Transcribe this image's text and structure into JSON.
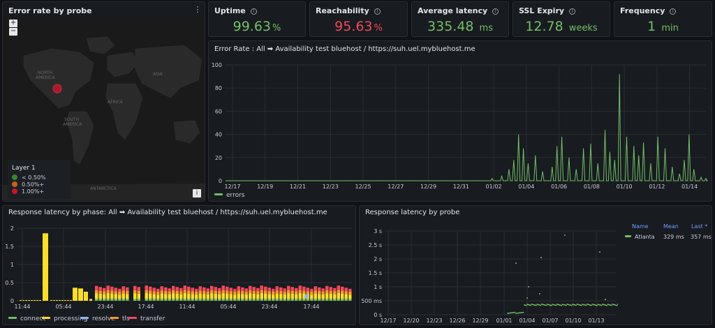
{
  "map_panel": {
    "title": "Error rate by probe",
    "zoom_in": "+",
    "zoom_out": "−",
    "labels": {
      "north_america_1": "NORTH",
      "north_america_2": "AMERICA",
      "south_america_1": "SOUTH",
      "south_america_2": "AMERICA",
      "asia": "ASIA",
      "africa": "AFRICA",
      "antarctica": "ANTARCTICA"
    },
    "legend": {
      "title": "Layer 1",
      "items": [
        {
          "label": "< 0.50%",
          "color": "#37872d"
        },
        {
          "label": "0.50%+",
          "color": "#c4631a"
        },
        {
          "label": "1.00%+",
          "color": "#c4162a"
        }
      ]
    },
    "info": "i"
  },
  "stats": [
    {
      "title": "Uptime",
      "value": "99.63",
      "unit": "%",
      "color": "#73bf69"
    },
    {
      "title": "Reachability",
      "value": "95.63",
      "unit": "%",
      "color": "#f2495c"
    },
    {
      "title": "Average latency",
      "value": "335.48",
      "unit": "ms",
      "color": "#73bf69"
    },
    {
      "title": "SSL Expiry",
      "value": "12.78",
      "unit": "weeks",
      "color": "#73bf69"
    },
    {
      "title": "Frequency",
      "value": "1",
      "unit": "min",
      "color": "#73bf69"
    }
  ],
  "error_rate": {
    "title": "Error Rate : All ➡ Availability test bluehost / https://suh.uel.mybluehost.me",
    "legend": "errors"
  },
  "latency_phase": {
    "title": "Response latency by phase: All ➡ Availability test bluehost / https://suh.uel.mybluehost.me",
    "legend": [
      {
        "label": "connect",
        "color": "#73bf69"
      },
      {
        "label": "processing",
        "color": "#fade2a"
      },
      {
        "label": "resolve",
        "color": "#8ab8ff"
      },
      {
        "label": "tls",
        "color": "#ff9830"
      },
      {
        "label": "transfer",
        "color": "#f2495c"
      }
    ]
  },
  "latency_probe": {
    "title": "Response latency by probe",
    "table": {
      "headers": [
        "Name",
        "Mean",
        "Last *"
      ],
      "rows": [
        {
          "name": "Atlanta",
          "mean": "329 ms",
          "last": "357 ms",
          "color": "#73bf69"
        }
      ]
    }
  },
  "chart_data": [
    {
      "type": "line",
      "title": "Error Rate : All ➡ Availability test bluehost / https://suh.uel.mybluehost.me",
      "x": [
        "12/17",
        "12/19",
        "12/21",
        "12/23",
        "12/25",
        "12/27",
        "12/29",
        "12/31",
        "01/02",
        "01/04",
        "01/06",
        "01/08",
        "01/10",
        "01/12",
        "01/14"
      ],
      "ylim": [
        0,
        100
      ],
      "yticks": [
        0,
        20,
        40,
        60,
        80,
        100
      ],
      "series": [
        {
          "name": "errors",
          "color": "#73bf69",
          "spikes": [
            [
              0.555,
              2
            ],
            [
              0.575,
              4
            ],
            [
              0.59,
              10
            ],
            [
              0.6,
              18
            ],
            [
              0.61,
              40
            ],
            [
              0.62,
              28
            ],
            [
              0.63,
              15
            ],
            [
              0.645,
              22
            ],
            [
              0.66,
              8
            ],
            [
              0.68,
              12
            ],
            [
              0.69,
              30
            ],
            [
              0.7,
              38
            ],
            [
              0.715,
              20
            ],
            [
              0.73,
              10
            ],
            [
              0.745,
              28
            ],
            [
              0.76,
              32
            ],
            [
              0.775,
              15
            ],
            [
              0.79,
              44
            ],
            [
              0.8,
              25
            ],
            [
              0.81,
              18
            ],
            [
              0.82,
              92
            ],
            [
              0.835,
              38
            ],
            [
              0.85,
              30
            ],
            [
              0.86,
              22
            ],
            [
              0.87,
              33
            ],
            [
              0.885,
              15
            ],
            [
              0.9,
              38
            ],
            [
              0.915,
              28
            ],
            [
              0.93,
              12
            ],
            [
              0.945,
              6
            ],
            [
              0.955,
              18
            ],
            [
              0.965,
              40
            ],
            [
              0.975,
              10
            ],
            [
              0.99,
              3
            ],
            [
              1.0,
              2
            ]
          ]
        }
      ]
    },
    {
      "type": "bar",
      "title": "Response latency by phase: All ➡ Availability test bluehost / https://suh.uel.mybluehost.me",
      "x": [
        "11:44",
        "05:44",
        "23:44",
        "17:44",
        "11:44",
        "05:44",
        "23:44",
        "17:44"
      ],
      "ylim": [
        0,
        2
      ],
      "yticks": [
        0,
        0.5,
        1,
        1.5,
        2
      ],
      "series": [
        {
          "name": "connect",
          "color": "#73bf69"
        },
        {
          "name": "processing",
          "color": "#fade2a"
        },
        {
          "name": "resolve",
          "color": "#8ab8ff"
        },
        {
          "name": "tls",
          "color": "#ff9830"
        },
        {
          "name": "transfer",
          "color": "#f2495c"
        }
      ]
    },
    {
      "type": "scatter",
      "title": "Response latency by probe",
      "x": [
        "12/17",
        "12/20",
        "12/23",
        "12/26",
        "12/29",
        "01/01",
        "01/04",
        "01/07",
        "01/10",
        "01/13"
      ],
      "yticks": [
        "0 s",
        "500 ms",
        "1 s",
        "1.5 s",
        "2 s",
        "2.5 s",
        "3 s"
      ],
      "ylim": [
        0,
        3
      ],
      "series": [
        {
          "name": "Atlanta",
          "color": "#73bf69"
        }
      ]
    }
  ]
}
